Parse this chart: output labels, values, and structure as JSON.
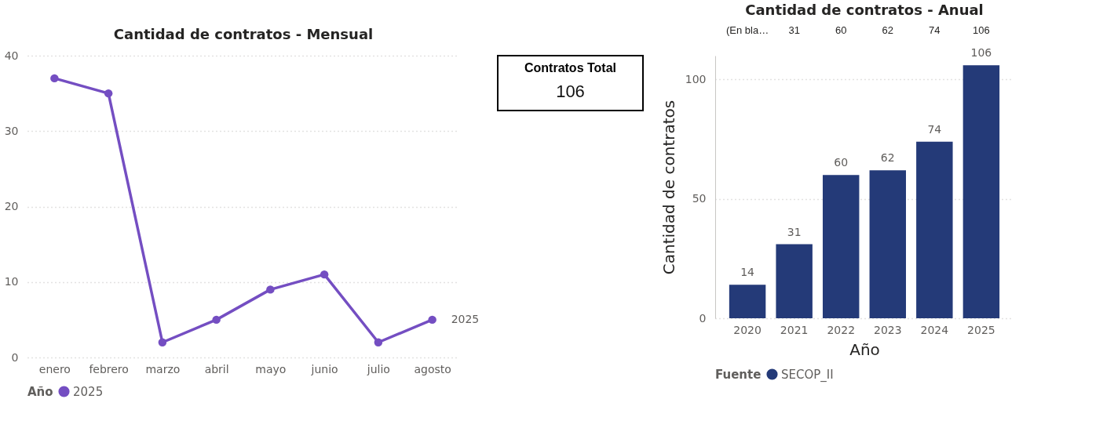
{
  "chart_data": [
    {
      "type": "line",
      "title": "Cantidad de contratos - Mensual",
      "categories": [
        "enero",
        "febrero",
        "marzo",
        "abril",
        "mayo",
        "junio",
        "julio",
        "agosto"
      ],
      "series": [
        {
          "name": "2025",
          "color": "#744ec2",
          "values": [
            37,
            35,
            2,
            5,
            9,
            11,
            2,
            5
          ]
        }
      ],
      "legend_title": "Año",
      "legend": "bottom",
      "ylim": [
        0,
        40
      ],
      "yticks": [
        0,
        10,
        20,
        30,
        40
      ],
      "grid": "y",
      "marker": "circle",
      "line_style": "solid"
    },
    {
      "type": "other",
      "title": "Contratos Total",
      "annotations": [
        "106"
      ]
    },
    {
      "type": "bar",
      "title": "Cantidad de contratos - Anual",
      "categories": [
        "2020",
        "2021",
        "2022",
        "2023",
        "2024",
        "2025"
      ],
      "series": [
        {
          "name": "SECOP_II",
          "color": "#243a78",
          "values": [
            14,
            31,
            60,
            62,
            74,
            106
          ]
        }
      ],
      "xlabel": "Año",
      "ylabel": "Cantidad de contratos",
      "legend_title": "Fuente",
      "legend": "bottom",
      "ylim": [
        0,
        110
      ],
      "yticks": [
        0,
        50,
        100
      ],
      "grid": "y",
      "data_labels": true,
      "annotations": [
        "(En bla…",
        "31",
        "60",
        "62",
        "74",
        "106"
      ]
    }
  ]
}
